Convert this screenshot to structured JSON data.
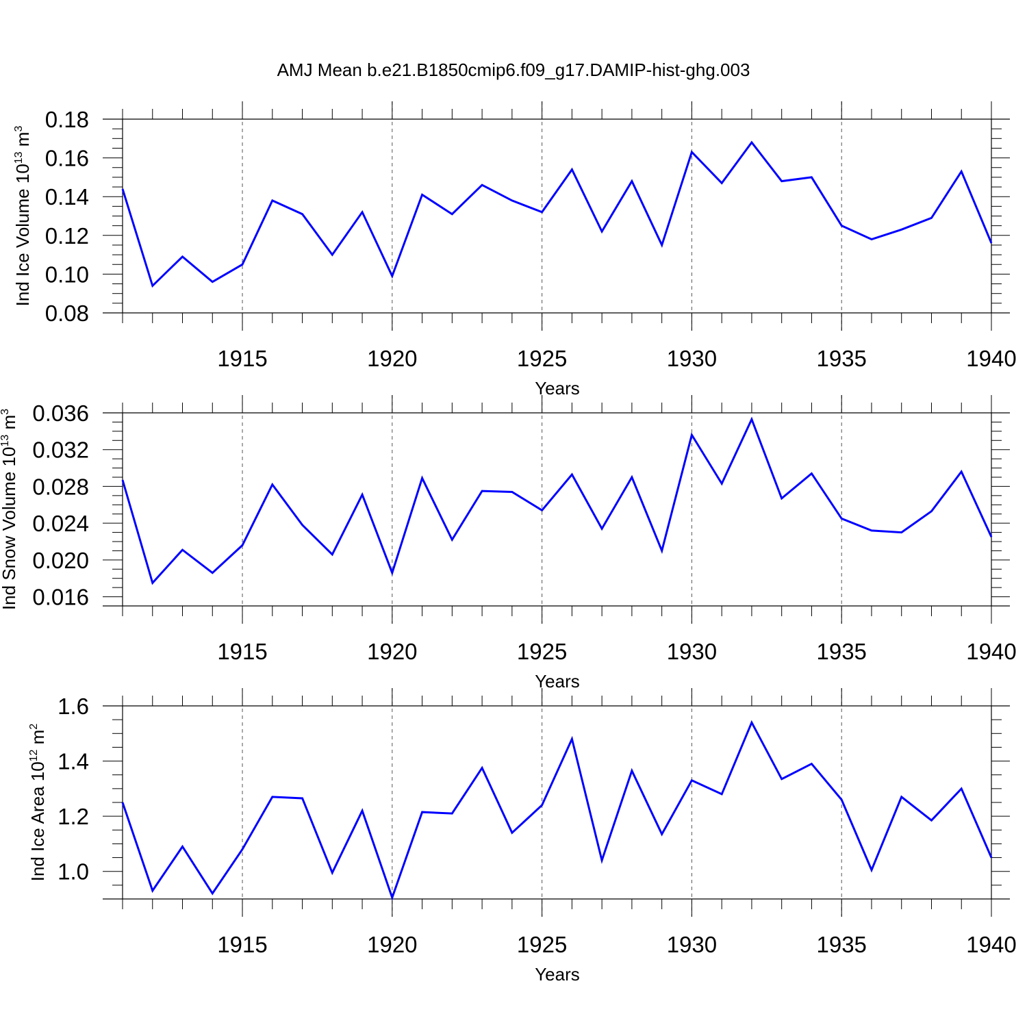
{
  "chart_data": {
    "title": "AMJ Mean b.e21.B1850cmip6.f09_g17.DAMIP-hist-ghg.003",
    "panels": [
      {
        "type": "line",
        "name": "ice-volume",
        "ylabel": "Ind Ice Volume 10",
        "ylabel_exp": "13",
        "ylabel_unit": " m",
        "ylabel_unit_exp": "3",
        "xlabel": "Years",
        "xlim": [
          1911,
          1940
        ],
        "ylim": [
          0.08,
          0.18
        ],
        "yticks": [
          0.08,
          0.1,
          0.12,
          0.14,
          0.16,
          0.18
        ],
        "ytick_labels": [
          "0.08",
          "0.10",
          "0.12",
          "0.14",
          "0.16",
          "0.18"
        ],
        "ytick_minor_step": 0.005,
        "xticks": [
          1915,
          1920,
          1925,
          1930,
          1935,
          1940
        ],
        "xtick_labels": [
          "1915",
          "1920",
          "1925",
          "1930",
          "1935",
          "1940"
        ],
        "grid_x": [
          1915,
          1920,
          1925,
          1930,
          1935
        ],
        "line_color": "#0000ff",
        "x": [
          1911,
          1912,
          1913,
          1914,
          1915,
          1916,
          1917,
          1918,
          1919,
          1920,
          1921,
          1922,
          1923,
          1924,
          1925,
          1926,
          1927,
          1928,
          1929,
          1930,
          1931,
          1932,
          1933,
          1934,
          1935,
          1936,
          1937,
          1938,
          1939,
          1940
        ],
        "values": [
          0.144,
          0.094,
          0.109,
          0.096,
          0.105,
          0.138,
          0.131,
          0.11,
          0.132,
          0.099,
          0.141,
          0.131,
          0.146,
          0.138,
          0.132,
          0.154,
          0.122,
          0.148,
          0.115,
          0.163,
          0.147,
          0.168,
          0.148,
          0.15,
          0.125,
          0.118,
          0.123,
          0.129,
          0.153,
          0.116
        ]
      },
      {
        "type": "line",
        "name": "snow-volume",
        "ylabel": "Ind Snow Volume 10",
        "ylabel_exp": "13",
        "ylabel_unit": " m",
        "ylabel_unit_exp": "3",
        "xlabel": "Years",
        "xlim": [
          1911,
          1940
        ],
        "ylim": [
          0.015,
          0.036
        ],
        "yticks": [
          0.016,
          0.02,
          0.024,
          0.028,
          0.032,
          0.036
        ],
        "ytick_labels": [
          "0.016",
          "0.020",
          "0.024",
          "0.028",
          "0.032",
          "0.036"
        ],
        "ytick_minor_step": 0.001,
        "xticks": [
          1915,
          1920,
          1925,
          1930,
          1935,
          1940
        ],
        "xtick_labels": [
          "1915",
          "1920",
          "1925",
          "1930",
          "1935",
          "1940"
        ],
        "grid_x": [
          1915,
          1920,
          1925,
          1930,
          1935
        ],
        "line_color": "#0000ff",
        "x": [
          1911,
          1912,
          1913,
          1914,
          1915,
          1916,
          1917,
          1918,
          1919,
          1920,
          1921,
          1922,
          1923,
          1924,
          1925,
          1926,
          1927,
          1928,
          1929,
          1930,
          1931,
          1932,
          1933,
          1934,
          1935,
          1936,
          1937,
          1938,
          1939,
          1940
        ],
        "values": [
          0.0287,
          0.0175,
          0.0211,
          0.0186,
          0.0216,
          0.0282,
          0.0238,
          0.0206,
          0.0271,
          0.0186,
          0.0289,
          0.0222,
          0.0275,
          0.0274,
          0.0254,
          0.0293,
          0.0234,
          0.029,
          0.021,
          0.0336,
          0.0283,
          0.0353,
          0.0267,
          0.0294,
          0.0245,
          0.0232,
          0.023,
          0.0253,
          0.0296,
          0.0225
        ]
      },
      {
        "type": "line",
        "name": "ice-area",
        "ylabel": "Ind Ice Area 10",
        "ylabel_exp": "12",
        "ylabel_unit": " m",
        "ylabel_unit_exp": "2",
        "xlabel": "Years",
        "xlim": [
          1911,
          1940
        ],
        "ylim": [
          0.9,
          1.6
        ],
        "yticks": [
          1.0,
          1.2,
          1.4,
          1.6
        ],
        "ytick_labels": [
          "1.0",
          "1.2",
          "1.4",
          "1.6"
        ],
        "ytick_minor_step": 0.05,
        "xticks": [
          1915,
          1920,
          1925,
          1930,
          1935,
          1940
        ],
        "xtick_labels": [
          "1915",
          "1920",
          "1925",
          "1930",
          "1935",
          "1940"
        ],
        "grid_x": [
          1915,
          1920,
          1925,
          1930,
          1935
        ],
        "line_color": "#0000ff",
        "x": [
          1911,
          1912,
          1913,
          1914,
          1915,
          1916,
          1917,
          1918,
          1919,
          1920,
          1921,
          1922,
          1923,
          1924,
          1925,
          1926,
          1927,
          1928,
          1929,
          1930,
          1931,
          1932,
          1933,
          1934,
          1935,
          1936,
          1937,
          1938,
          1939,
          1940
        ],
        "values": [
          1.25,
          0.93,
          1.09,
          0.92,
          1.08,
          1.27,
          1.265,
          0.995,
          1.22,
          0.905,
          1.215,
          1.21,
          1.375,
          1.14,
          1.24,
          1.48,
          1.04,
          1.365,
          1.135,
          1.33,
          1.28,
          1.54,
          1.335,
          1.39,
          1.26,
          1.005,
          1.27,
          1.185,
          1.3,
          1.05
        ]
      }
    ]
  }
}
